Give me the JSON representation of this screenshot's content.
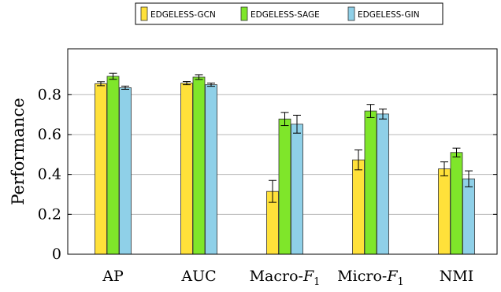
{
  "chart_data": {
    "type": "bar",
    "categories": [
      "AP",
      "AUC",
      "Macro-F1",
      "Micro-F1",
      "NMI"
    ],
    "category_display": [
      {
        "main": "AP",
        "sub": ""
      },
      {
        "main": "AUC",
        "sub": ""
      },
      {
        "main": "Macro-F",
        "sub": "1"
      },
      {
        "main": "Micro-F",
        "sub": "1"
      },
      {
        "main": "NMI",
        "sub": ""
      }
    ],
    "series": [
      {
        "name": "EDGELESS-GCN",
        "color": "#ffe13a",
        "values": [
          0.855,
          0.858,
          0.315,
          0.473,
          0.428
        ],
        "errors": [
          0.01,
          0.008,
          0.055,
          0.05,
          0.035
        ]
      },
      {
        "name": "EDGELESS-SAGE",
        "color": "#7fe62a",
        "values": [
          0.892,
          0.888,
          0.678,
          0.718,
          0.51
        ],
        "errors": [
          0.015,
          0.012,
          0.033,
          0.033,
          0.022
        ]
      },
      {
        "name": "EDGELESS-GIN",
        "color": "#8fd0e8",
        "values": [
          0.835,
          0.85,
          0.652,
          0.703,
          0.378
        ],
        "errors": [
          0.008,
          0.008,
          0.045,
          0.025,
          0.04
        ]
      }
    ],
    "xlabel": "",
    "ylabel": "Performance",
    "ylim": [
      0,
      1.03
    ],
    "yticks": [
      "0",
      "0.2",
      "0.4",
      "0.6",
      "0.8"
    ],
    "ytick_values": [
      0,
      0.2,
      0.4,
      0.6,
      0.8
    ],
    "grid": "horizontal",
    "legend_position": "top-center"
  }
}
